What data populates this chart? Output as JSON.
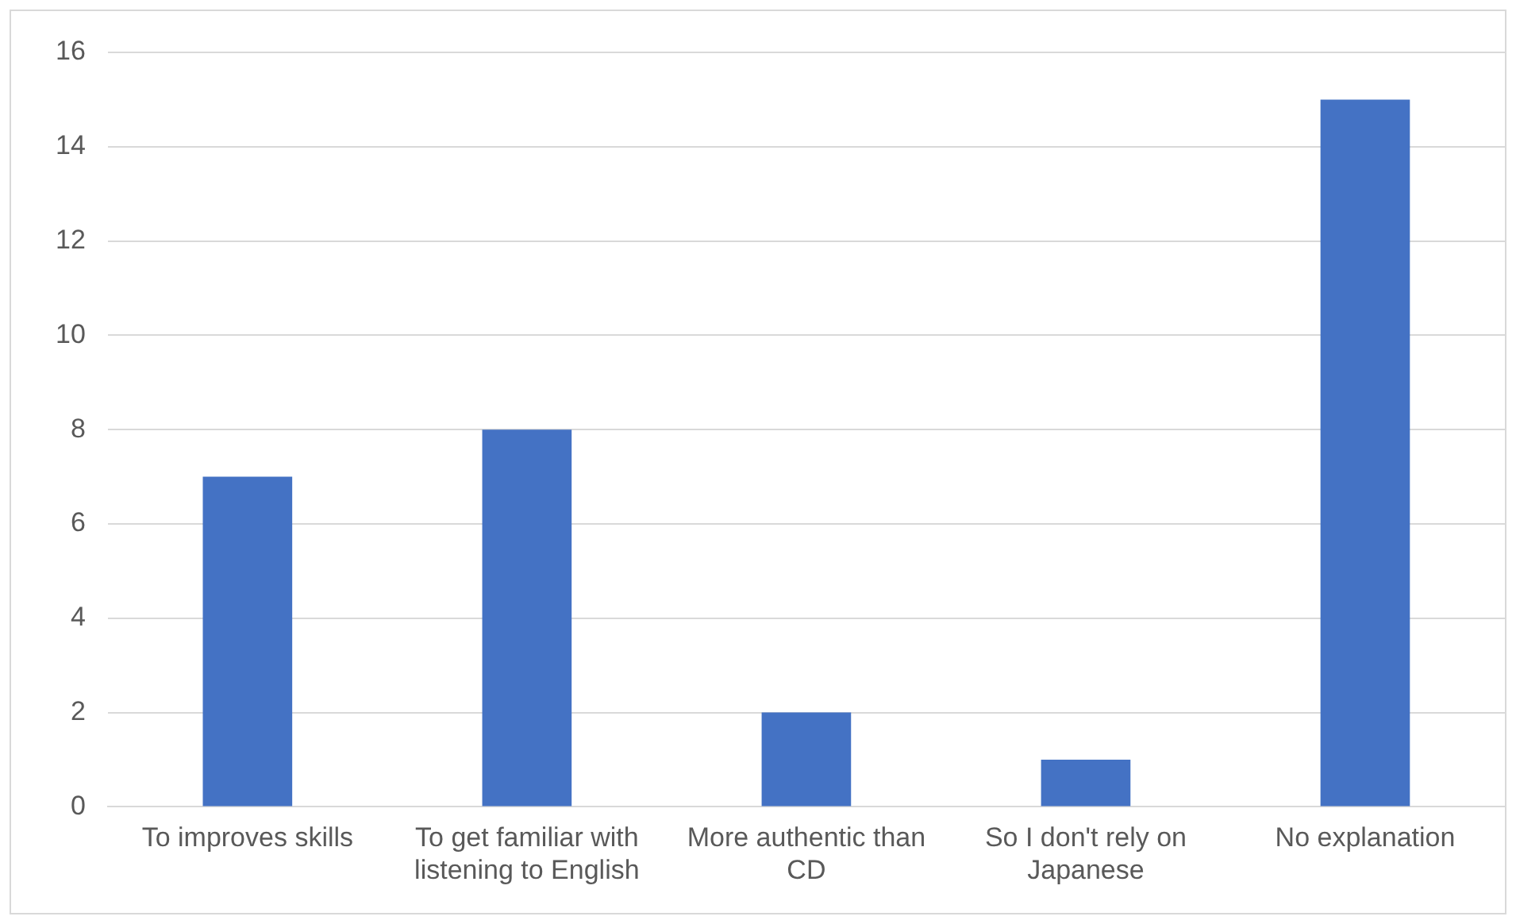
{
  "chart_data": {
    "type": "bar",
    "categories": [
      "To improves skills",
      "To get familiar with listening to English",
      "More authentic than CD",
      "So I don't rely on Japanese",
      "No explanation"
    ],
    "values": [
      7,
      8,
      2,
      1,
      15
    ],
    "color": "#4472c4",
    "ylim": [
      0,
      16
    ],
    "yticks": [
      0,
      2,
      4,
      6,
      8,
      10,
      12,
      14,
      16
    ],
    "grid": "y",
    "legend": false
  }
}
